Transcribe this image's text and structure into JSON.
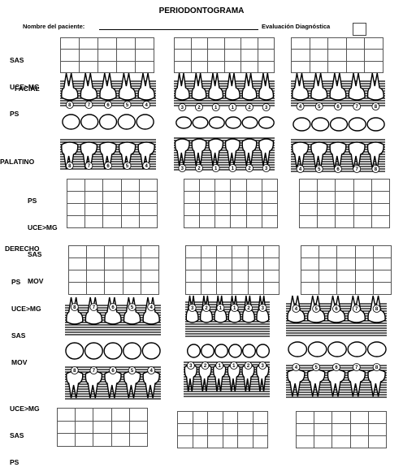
{
  "title": "PERIODONTOGRAMA",
  "patient_label": "Nombre del paciente:",
  "diagnosis_label": "Evaluación Diagnóstica",
  "upper": {
    "row_labels": [
      "SAS",
      "UCE>MG",
      "PS"
    ],
    "facial_label": "FACIAL",
    "palatal_label": "PALATINO",
    "lower_row_labels": [
      "PS",
      "UCE>MG",
      "SAS",
      "MOV"
    ],
    "left_numbers": [
      "8",
      "7",
      "6",
      "5",
      "4"
    ],
    "mid_numbers": [
      "3",
      "2",
      "1",
      "1",
      "2",
      "3"
    ],
    "right_numbers": [
      "4",
      "5",
      "6",
      "7",
      "8"
    ]
  },
  "lower": {
    "side_label": "DERECHO",
    "row_labels": [
      "PS",
      "UCE>MG",
      "SAS",
      "MOV"
    ],
    "bottom_row_labels": [
      "UCE>MG",
      "SAS",
      "PS"
    ],
    "left_numbers": [
      "8",
      "7",
      "6",
      "5",
      "4"
    ],
    "mid_numbers": [
      "3",
      "2",
      "1",
      "1",
      "2",
      "3"
    ],
    "right_numbers": [
      "4",
      "5",
      "6",
      "7",
      "8"
    ]
  }
}
